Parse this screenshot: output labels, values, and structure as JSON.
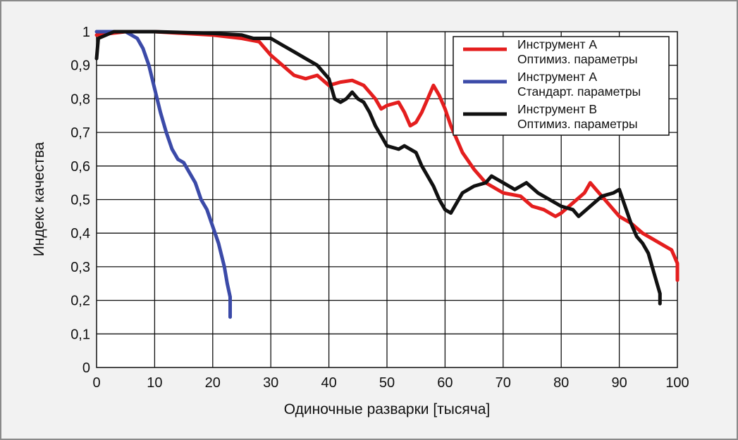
{
  "chart_data": {
    "type": "line",
    "xlabel": "Одиночные разварки [тысяча]",
    "ylabel": "Индекс качества",
    "xlim": [
      0,
      100
    ],
    "ylim": [
      0,
      1
    ],
    "x_ticks": [
      "0",
      "10",
      "20",
      "30",
      "40",
      "50",
      "60",
      "70",
      "80",
      "90",
      "100"
    ],
    "y_ticks": [
      "0",
      "0,1",
      "0,2",
      "0,3",
      "0,4",
      "0,5",
      "0,6",
      "0,7",
      "0,8",
      "0,9",
      "1"
    ],
    "grid": true,
    "legend_position": "top-right",
    "series": [
      {
        "name": "Инструмент А Оптимиз. параметры",
        "legend_lines": [
          "Инструмент А",
          "Оптимиз. параметры"
        ],
        "color": "#e41e1e",
        "points": [
          [
            0,
            0.99
          ],
          [
            5,
            1.0
          ],
          [
            10,
            1.0
          ],
          [
            15,
            0.995
          ],
          [
            20,
            0.99
          ],
          [
            25,
            0.98
          ],
          [
            28,
            0.97
          ],
          [
            30,
            0.93
          ],
          [
            32,
            0.9
          ],
          [
            34,
            0.87
          ],
          [
            36,
            0.86
          ],
          [
            38,
            0.87
          ],
          [
            40,
            0.84
          ],
          [
            42,
            0.85
          ],
          [
            44,
            0.855
          ],
          [
            46,
            0.84
          ],
          [
            48,
            0.8
          ],
          [
            49,
            0.77
          ],
          [
            50,
            0.78
          ],
          [
            52,
            0.79
          ],
          [
            53,
            0.76
          ],
          [
            54,
            0.72
          ],
          [
            55,
            0.73
          ],
          [
            56,
            0.76
          ],
          [
            57,
            0.8
          ],
          [
            58,
            0.84
          ],
          [
            59,
            0.81
          ],
          [
            60,
            0.77
          ],
          [
            61,
            0.72
          ],
          [
            62,
            0.68
          ],
          [
            63,
            0.64
          ],
          [
            65,
            0.59
          ],
          [
            67,
            0.55
          ],
          [
            70,
            0.52
          ],
          [
            73,
            0.51
          ],
          [
            75,
            0.48
          ],
          [
            77,
            0.47
          ],
          [
            79,
            0.45
          ],
          [
            80,
            0.46
          ],
          [
            82,
            0.49
          ],
          [
            84,
            0.52
          ],
          [
            85,
            0.55
          ],
          [
            86,
            0.53
          ],
          [
            88,
            0.49
          ],
          [
            90,
            0.45
          ],
          [
            92,
            0.43
          ],
          [
            94,
            0.4
          ],
          [
            96,
            0.38
          ],
          [
            98,
            0.36
          ],
          [
            99,
            0.35
          ],
          [
            100,
            0.31
          ],
          [
            100,
            0.26
          ]
        ]
      },
      {
        "name": "Инструмент А Стандарт. параметры",
        "legend_lines": [
          "Инструмент А",
          "Стандарт. параметры"
        ],
        "color": "#3b4aa8",
        "points": [
          [
            0,
            1.0
          ],
          [
            5,
            1.0
          ],
          [
            7,
            0.98
          ],
          [
            8,
            0.95
          ],
          [
            9,
            0.9
          ],
          [
            10,
            0.83
          ],
          [
            11,
            0.76
          ],
          [
            12,
            0.7
          ],
          [
            13,
            0.65
          ],
          [
            14,
            0.62
          ],
          [
            15,
            0.61
          ],
          [
            16,
            0.58
          ],
          [
            17,
            0.55
          ],
          [
            18,
            0.5
          ],
          [
            19,
            0.47
          ],
          [
            20,
            0.42
          ],
          [
            21,
            0.37
          ],
          [
            22,
            0.3
          ],
          [
            22.5,
            0.25
          ],
          [
            23,
            0.21
          ],
          [
            23,
            0.15
          ]
        ]
      },
      {
        "name": "Инструмент В Оптимиз. параметры",
        "legend_lines": [
          "Инструмент В",
          "Оптимиз. параметры"
        ],
        "color": "#111111",
        "points": [
          [
            0,
            0.92
          ],
          [
            0.3,
            0.98
          ],
          [
            3,
            1.0
          ],
          [
            10,
            1.0
          ],
          [
            20,
            0.995
          ],
          [
            25,
            0.99
          ],
          [
            27,
            0.98
          ],
          [
            30,
            0.98
          ],
          [
            32,
            0.96
          ],
          [
            34,
            0.94
          ],
          [
            36,
            0.92
          ],
          [
            37,
            0.91
          ],
          [
            38,
            0.9
          ],
          [
            40,
            0.86
          ],
          [
            41,
            0.8
          ],
          [
            42,
            0.79
          ],
          [
            43,
            0.8
          ],
          [
            44,
            0.82
          ],
          [
            45,
            0.8
          ],
          [
            46,
            0.79
          ],
          [
            47,
            0.76
          ],
          [
            48,
            0.72
          ],
          [
            49,
            0.69
          ],
          [
            50,
            0.66
          ],
          [
            52,
            0.65
          ],
          [
            53,
            0.66
          ],
          [
            55,
            0.64
          ],
          [
            56,
            0.6
          ],
          [
            57,
            0.57
          ],
          [
            58,
            0.54
          ],
          [
            59,
            0.5
          ],
          [
            60,
            0.47
          ],
          [
            61,
            0.46
          ],
          [
            62,
            0.49
          ],
          [
            63,
            0.52
          ],
          [
            65,
            0.54
          ],
          [
            67,
            0.55
          ],
          [
            68,
            0.57
          ],
          [
            70,
            0.55
          ],
          [
            72,
            0.53
          ],
          [
            74,
            0.55
          ],
          [
            76,
            0.52
          ],
          [
            78,
            0.5
          ],
          [
            80,
            0.48
          ],
          [
            82,
            0.47
          ],
          [
            83,
            0.45
          ],
          [
            85,
            0.48
          ],
          [
            87,
            0.51
          ],
          [
            89,
            0.52
          ],
          [
            90,
            0.53
          ],
          [
            91,
            0.48
          ],
          [
            92,
            0.43
          ],
          [
            93,
            0.39
          ],
          [
            94,
            0.37
          ],
          [
            95,
            0.34
          ],
          [
            96,
            0.28
          ],
          [
            97,
            0.22
          ],
          [
            97,
            0.19
          ]
        ]
      }
    ]
  }
}
